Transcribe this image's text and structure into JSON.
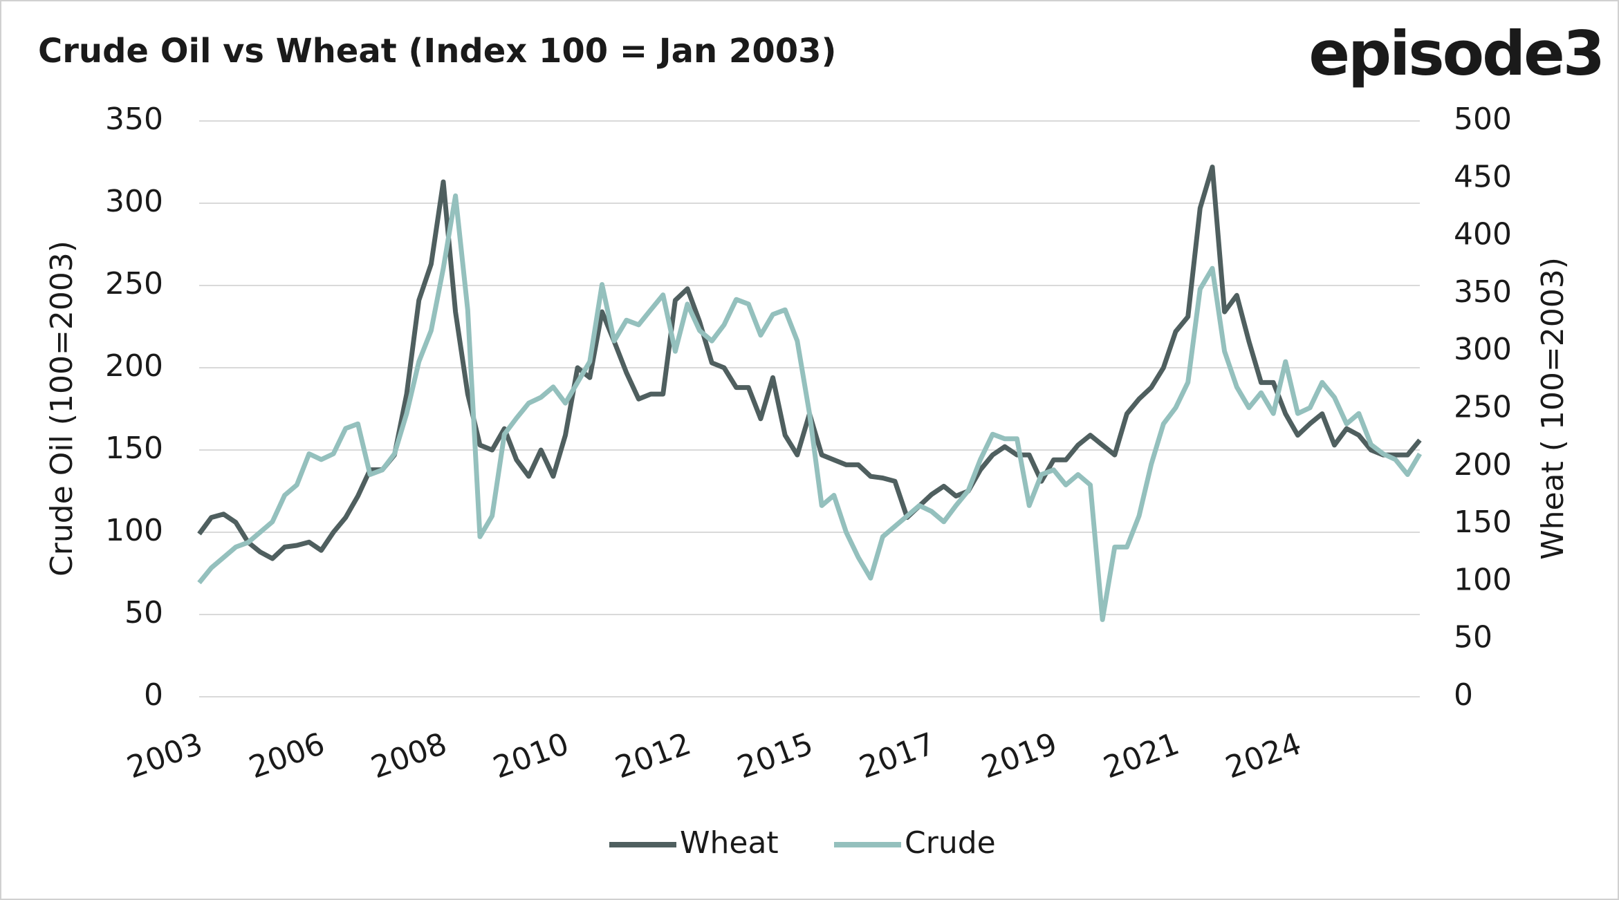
{
  "brand": "episode3",
  "chart_data": {
    "type": "line",
    "title": "Crude Oil vs Wheat (Index 100 = Jan 2003)",
    "y_label": "Crude Oil (100=2003)",
    "y2_label": "Wheat ( 100=2003)",
    "categories": [
      "2003",
      null,
      null,
      null,
      null,
      null,
      null,
      null,
      null,
      null,
      "2006",
      null,
      null,
      null,
      null,
      null,
      null,
      null,
      null,
      null,
      "2008",
      null,
      null,
      null,
      null,
      null,
      null,
      null,
      null,
      null,
      "2010",
      null,
      null,
      null,
      null,
      null,
      null,
      null,
      null,
      null,
      "2012",
      null,
      null,
      null,
      null,
      null,
      null,
      null,
      null,
      null,
      "2015",
      null,
      null,
      null,
      null,
      null,
      null,
      null,
      null,
      null,
      "2017",
      null,
      null,
      null,
      null,
      null,
      null,
      null,
      null,
      null,
      "2019",
      null,
      null,
      null,
      null,
      null,
      null,
      null,
      null,
      null,
      "2021",
      null,
      null,
      null,
      null,
      null,
      null,
      null,
      null,
      null,
      "2024",
      null,
      null,
      null,
      null,
      null,
      null,
      null,
      null,
      null,
      null
    ],
    "series": [
      {
        "name": "Wheat",
        "color": "#4f5f5f",
        "axis": "y",
        "values": [
          99,
          109,
          111,
          106,
          94,
          88,
          84,
          91,
          92,
          94,
          89,
          100,
          109,
          122,
          138,
          138,
          147,
          184,
          241,
          263,
          313,
          234,
          184,
          153,
          150,
          163,
          144,
          134,
          150,
          134,
          159,
          200,
          194,
          234,
          216,
          197,
          181,
          184,
          184,
          241,
          248,
          228,
          203,
          200,
          188,
          188,
          169,
          194,
          159,
          147,
          172,
          147,
          144,
          141,
          141,
          134,
          133,
          131,
          109,
          116,
          123,
          128,
          122,
          125,
          138,
          147,
          152,
          147,
          147,
          131,
          144,
          144,
          153,
          159,
          153,
          147,
          172,
          181,
          188,
          200,
          222,
          231,
          297,
          322,
          234,
          244,
          216,
          191,
          191,
          172,
          159,
          166,
          172,
          153,
          163,
          159,
          150,
          147,
          147,
          147,
          156
        ]
      },
      {
        "name": "Crude",
        "color": "#94c0bd",
        "axis": "y2",
        "values": [
          99,
          112,
          121,
          130,
          134,
          143,
          152,
          175,
          184,
          211,
          206,
          211,
          233,
          237,
          193,
          197,
          211,
          246,
          291,
          318,
          372,
          435,
          336,
          139,
          157,
          228,
          242,
          255,
          260,
          269,
          255,
          273,
          291,
          358,
          309,
          327,
          323,
          336,
          349,
          300,
          341,
          318,
          309,
          323,
          345,
          341,
          314,
          332,
          336,
          309,
          246,
          166,
          175,
          143,
          121,
          103,
          139,
          148,
          157,
          166,
          161,
          152,
          166,
          179,
          206,
          228,
          224,
          224,
          166,
          193,
          197,
          184,
          193,
          184,
          67,
          130,
          130,
          157,
          202,
          237,
          251,
          273,
          354,
          372,
          300,
          269,
          251,
          264,
          246,
          291,
          246,
          251,
          273,
          260,
          237,
          246,
          219,
          211,
          206,
          193,
          211
        ]
      }
    ],
    "ylim": [
      0,
      350
    ],
    "yticks": [
      0,
      50,
      100,
      150,
      200,
      250,
      300,
      350
    ],
    "y2lim": [
      0,
      500
    ],
    "y2ticks": [
      0,
      50,
      100,
      150,
      200,
      250,
      300,
      350,
      400,
      450,
      500
    ],
    "grid": true,
    "legend": "bottom"
  }
}
